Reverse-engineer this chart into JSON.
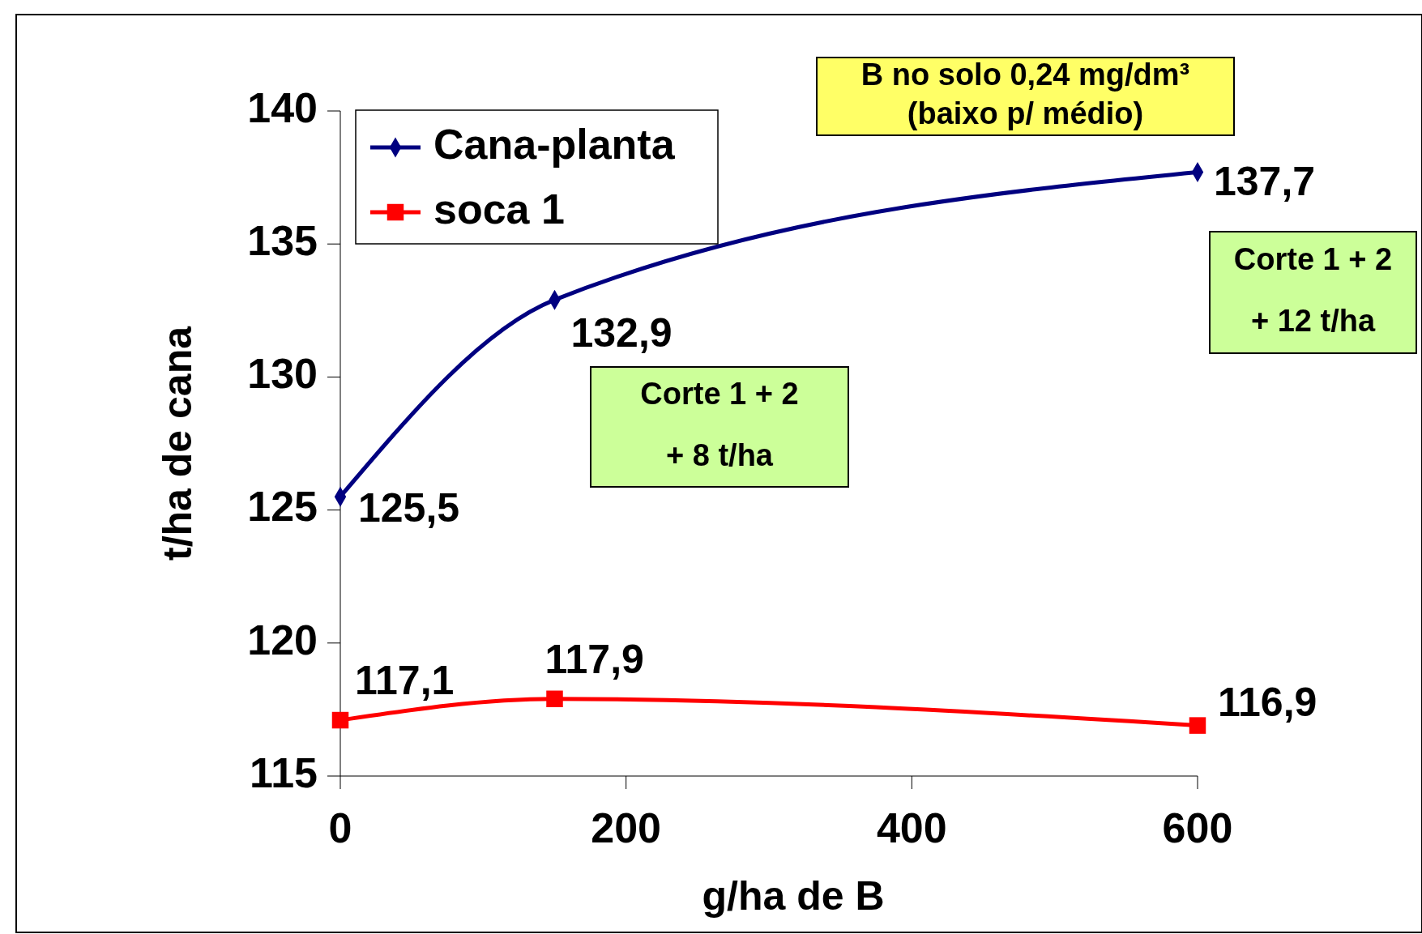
{
  "chart_data": {
    "type": "line",
    "xlabel": "g/ha de B",
    "ylabel": "t/ha de cana",
    "x": [
      0,
      150,
      600
    ],
    "xlim": [
      0,
      600
    ],
    "xticks": [
      0,
      200,
      400,
      600
    ],
    "ylim": [
      115,
      140
    ],
    "yticks": [
      115,
      120,
      125,
      130,
      135,
      140
    ],
    "series": [
      {
        "name": "Cana-planta",
        "color": "#000080",
        "values": [
          125.5,
          132.9,
          137.7
        ],
        "value_labels": [
          "125,5",
          "132,9",
          "137,7"
        ],
        "marker": "diamond"
      },
      {
        "name": "soca 1",
        "color": "#ff0000",
        "values": [
          117.1,
          117.9,
          116.9
        ],
        "value_labels": [
          "117,1",
          "117,9",
          "116,9"
        ],
        "marker": "square"
      }
    ],
    "legend": "top left",
    "grid": false,
    "annotations": [
      "B no solo  0,24 mg/dm³\n(baixo p/ médio)",
      "Corte 1 + 2\n+ 8 t/ha",
      "Corte 1 + 2\n+ 12 t/ha"
    ]
  }
}
